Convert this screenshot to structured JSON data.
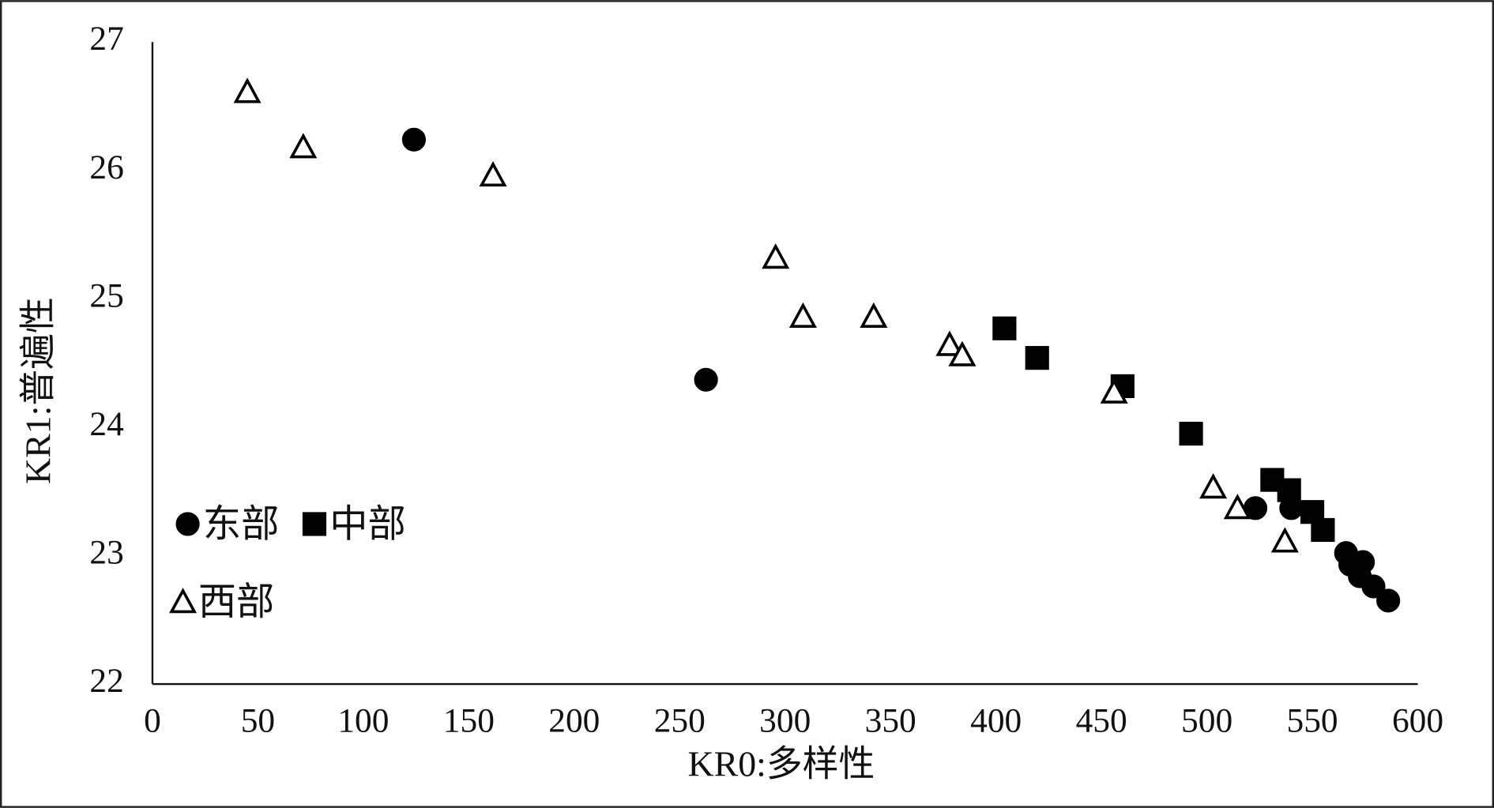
{
  "chart_data": {
    "type": "scatter",
    "x_label": "KR0:多样性",
    "y_label": "KR1:普遍性",
    "xlim": [
      0,
      600
    ],
    "xticks": [
      0,
      50,
      100,
      150,
      200,
      250,
      300,
      350,
      400,
      450,
      500,
      550,
      600
    ],
    "ylim": [
      22,
      27
    ],
    "yticks": [
      22,
      23,
      24,
      25,
      26,
      27
    ],
    "grid": false,
    "legend": "left",
    "series": [
      {
        "name": "东部",
        "color": "#000000",
        "marker": "circle",
        "filled": true,
        "x": [
          124,
          262.5,
          523,
          540,
          566,
          568,
          574,
          572.5,
          579,
          586
        ],
        "values": [
          26.24,
          24.37,
          23.37,
          23.37,
          23.02,
          22.93,
          22.95,
          22.84,
          22.76,
          22.65
        ]
      },
      {
        "name": "中部",
        "color": "#000000",
        "marker": "square",
        "filled": true,
        "x": [
          404,
          419.5,
          460,
          492.5,
          531,
          539,
          550,
          555
        ],
        "values": [
          24.77,
          24.54,
          24.32,
          23.95,
          23.59,
          23.51,
          23.34,
          23.2
        ]
      },
      {
        "name": "西部",
        "color": "#000000",
        "marker": "triangle",
        "filled": false,
        "x": [
          45,
          71.5,
          161.5,
          295.5,
          308.5,
          342,
          378,
          384,
          456,
          503,
          514.5,
          537
        ],
        "values": [
          26.61,
          26.18,
          25.96,
          25.32,
          24.86,
          24.86,
          24.64,
          24.56,
          24.27,
          23.53,
          23.37,
          23.11
        ]
      }
    ]
  }
}
